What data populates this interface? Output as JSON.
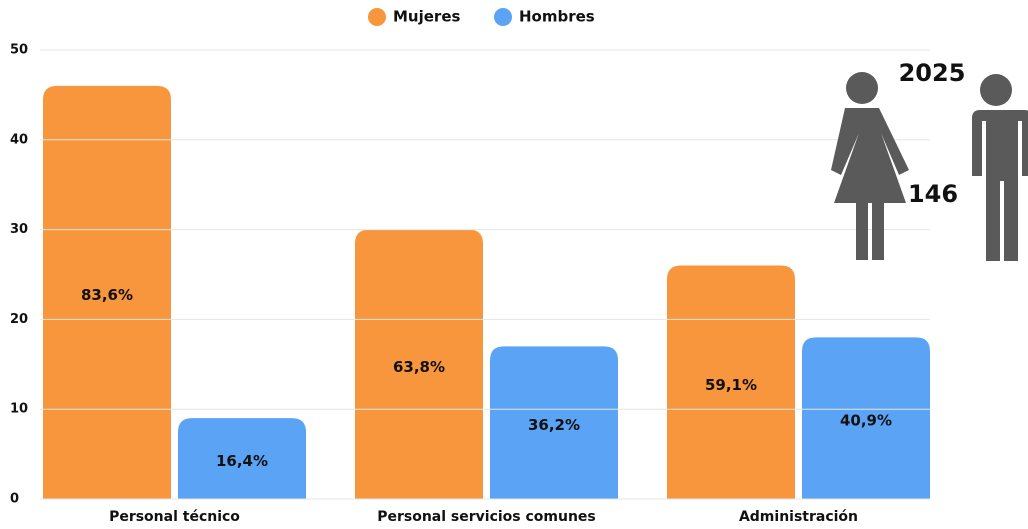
{
  "chart_data": {
    "type": "bar",
    "categories": [
      "Personal técnico",
      "Personal servicios comunes",
      "Administración"
    ],
    "series": [
      {
        "name": "Mujeres",
        "color": "#f7963c",
        "values": [
          46,
          30,
          26
        ],
        "share_labels": [
          "83,6%",
          "63,8%",
          "59,1%"
        ]
      },
      {
        "name": "Hombres",
        "color": "#5aa3f5",
        "values": [
          9,
          17,
          18
        ],
        "share_labels": [
          "16,4%",
          "36,2%",
          "40,9%"
        ]
      }
    ],
    "ylim": [
      0,
      50
    ],
    "yticks": [
      0,
      10,
      20,
      30,
      40,
      50
    ],
    "grid": true,
    "legend": "top",
    "annotations": [
      "2025",
      "146"
    ]
  }
}
